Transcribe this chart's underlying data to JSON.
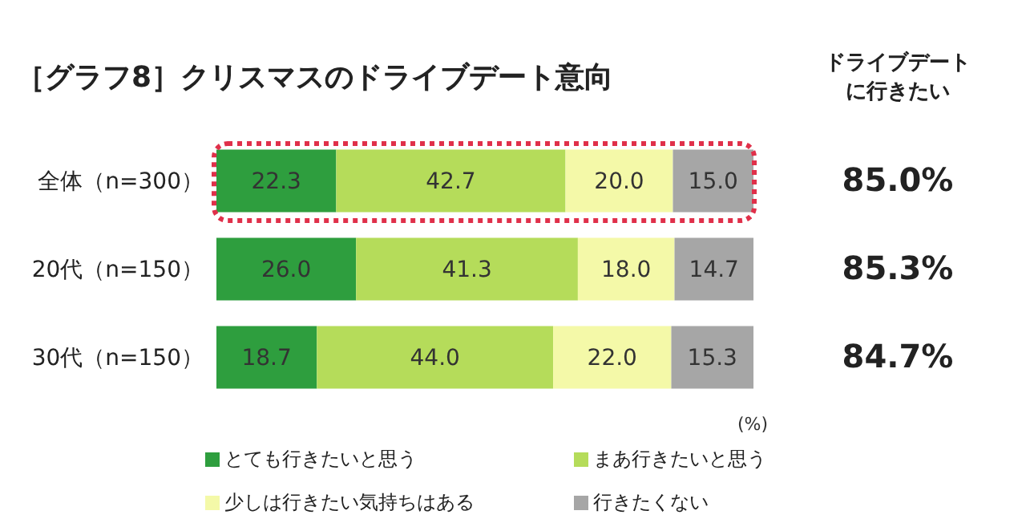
{
  "chart_data": {
    "type": "bar",
    "orientation": "horizontal",
    "stacked": true,
    "title": "［グラフ8］クリスマスのドライブデート意向",
    "categories": [
      "全体（n=300）",
      "20代（n=150）",
      "30代（n=150）"
    ],
    "series": [
      {
        "name": "とても行きたいと思う",
        "color": "#2e9e3e",
        "values": [
          22.3,
          26,
          18.7
        ],
        "value_labels": [
          "22.3",
          "26.0",
          "18.7"
        ]
      },
      {
        "name": "まあ行きたいと思う",
        "color": "#b5dc5a",
        "values": [
          42.7,
          41.3,
          44
        ],
        "value_labels": [
          "42.7",
          "41.3",
          "44.0"
        ]
      },
      {
        "name": "少しは行きたい気持ちはある",
        "color": "#f4f9a8",
        "values": [
          20,
          18,
          22
        ],
        "value_labels": [
          "20.0",
          "18.0",
          "22.0"
        ]
      },
      {
        "name": "行きたくない",
        "color": "#a6a6a6",
        "values": [
          15,
          14.7,
          15.3
        ],
        "value_labels": [
          "15.0",
          "14.7",
          "15.3"
        ]
      }
    ],
    "legend": "bottom",
    "annotations": [
      "ドライブデートに行きたい",
      "85.0%",
      "85.3%",
      "84.7%",
      "(%)"
    ]
  }
}
